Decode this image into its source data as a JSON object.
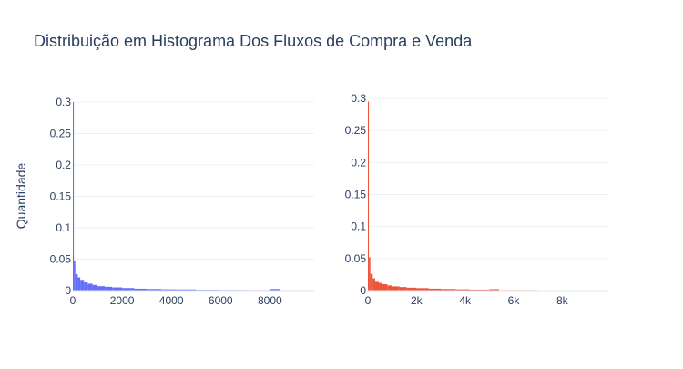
{
  "title": "Distribuição em Histograma Dos Fluxos de Compra e Venda",
  "chart_data": [
    {
      "type": "bar",
      "subtype": "histogram",
      "color": "#636efa",
      "ylabel": "Quantidade",
      "xlabel": "",
      "xlim": [
        0,
        9800
      ],
      "ylim": [
        0,
        0.3
      ],
      "x_ticks": [
        0,
        2000,
        4000,
        6000,
        8000
      ],
      "x_tick_labels": [
        "0",
        "2000",
        "4000",
        "6000",
        "8000"
      ],
      "y_ticks": [
        0,
        0.05,
        0.1,
        0.15,
        0.2,
        0.25,
        0.3
      ],
      "y_tick_labels": [
        "0",
        "0.05",
        "0.1",
        "0.15",
        "0.2",
        "0.25",
        "0.3"
      ],
      "grid": true,
      "bins": [
        {
          "x0": 0,
          "x1": 40,
          "value": 0.3
        },
        {
          "x0": 40,
          "x1": 100,
          "value": 0.048
        },
        {
          "x0": 100,
          "x1": 200,
          "value": 0.026
        },
        {
          "x0": 200,
          "x1": 300,
          "value": 0.021
        },
        {
          "x0": 300,
          "x1": 450,
          "value": 0.017
        },
        {
          "x0": 450,
          "x1": 600,
          "value": 0.014
        },
        {
          "x0": 600,
          "x1": 800,
          "value": 0.011
        },
        {
          "x0": 800,
          "x1": 1000,
          "value": 0.009
        },
        {
          "x0": 1000,
          "x1": 1300,
          "value": 0.007
        },
        {
          "x0": 1300,
          "x1": 1600,
          "value": 0.006
        },
        {
          "x0": 1600,
          "x1": 2000,
          "value": 0.005
        },
        {
          "x0": 2000,
          "x1": 2500,
          "value": 0.004
        },
        {
          "x0": 2500,
          "x1": 3000,
          "value": 0.003
        },
        {
          "x0": 3000,
          "x1": 3600,
          "value": 0.0025
        },
        {
          "x0": 3600,
          "x1": 4200,
          "value": 0.002
        },
        {
          "x0": 4200,
          "x1": 5000,
          "value": 0.0018
        },
        {
          "x0": 5000,
          "x1": 6000,
          "value": 0.0012
        },
        {
          "x0": 6000,
          "x1": 7000,
          "value": 0.001
        },
        {
          "x0": 7000,
          "x1": 8000,
          "value": 0.0009
        },
        {
          "x0": 8000,
          "x1": 8400,
          "value": 0.0025
        },
        {
          "x0": 8400,
          "x1": 9800,
          "value": 0.0008
        }
      ]
    },
    {
      "type": "bar",
      "subtype": "histogram",
      "color": "#ef553b",
      "xlabel": "",
      "xlim": [
        0,
        9900
      ],
      "ylim": [
        0,
        0.3
      ],
      "x_ticks": [
        0,
        2000,
        4000,
        6000,
        8000
      ],
      "x_tick_labels": [
        "0",
        "2k",
        "4k",
        "6k",
        "8k"
      ],
      "y_ticks": [
        0,
        0.05,
        0.1,
        0.15,
        0.2,
        0.25,
        0.3
      ],
      "y_tick_labels": [
        "0",
        "0.05",
        "0.1",
        "0.15",
        "0.2",
        "0.25",
        "0.3"
      ],
      "grid": true,
      "bins": [
        {
          "x0": 0,
          "x1": 40,
          "value": 0.295
        },
        {
          "x0": 40,
          "x1": 100,
          "value": 0.052
        },
        {
          "x0": 100,
          "x1": 200,
          "value": 0.026
        },
        {
          "x0": 200,
          "x1": 300,
          "value": 0.019
        },
        {
          "x0": 300,
          "x1": 450,
          "value": 0.015
        },
        {
          "x0": 450,
          "x1": 600,
          "value": 0.012
        },
        {
          "x0": 600,
          "x1": 800,
          "value": 0.01
        },
        {
          "x0": 800,
          "x1": 1000,
          "value": 0.008
        },
        {
          "x0": 1000,
          "x1": 1300,
          "value": 0.0065
        },
        {
          "x0": 1300,
          "x1": 1600,
          "value": 0.0055
        },
        {
          "x0": 1600,
          "x1": 2000,
          "value": 0.0045
        },
        {
          "x0": 2000,
          "x1": 2500,
          "value": 0.0038
        },
        {
          "x0": 2500,
          "x1": 3000,
          "value": 0.003
        },
        {
          "x0": 3000,
          "x1": 3600,
          "value": 0.0025
        },
        {
          "x0": 3600,
          "x1": 4200,
          "value": 0.002
        },
        {
          "x0": 4200,
          "x1": 5000,
          "value": 0.0015
        },
        {
          "x0": 5000,
          "x1": 5400,
          "value": 0.0022
        },
        {
          "x0": 5400,
          "x1": 7000,
          "value": 0.0009
        },
        {
          "x0": 7000,
          "x1": 8500,
          "value": 0.0007
        },
        {
          "x0": 8500,
          "x1": 9900,
          "value": 0.0005
        }
      ]
    }
  ]
}
